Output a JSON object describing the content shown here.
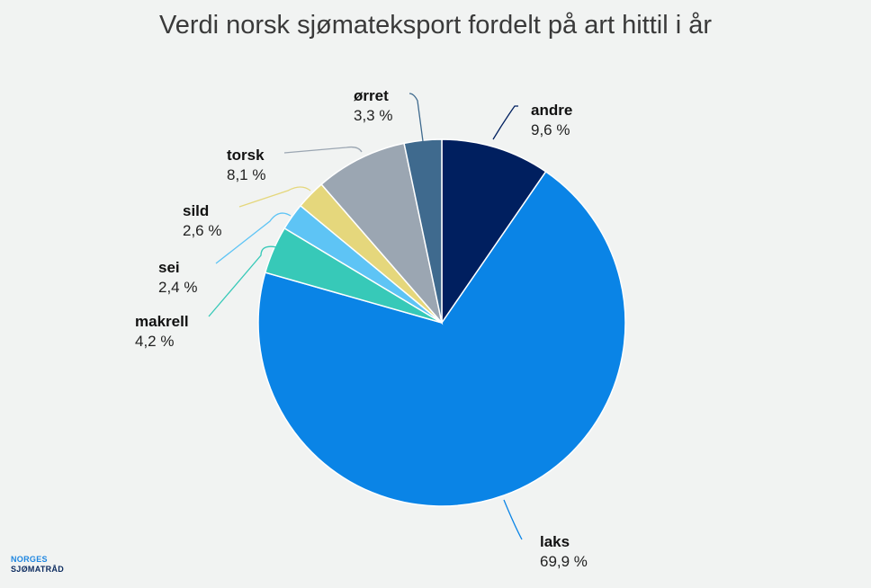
{
  "chart_data": {
    "type": "pie",
    "title": "Verdi norsk sjømateksport fordelt på art hittil i år",
    "start_angle_deg": 0,
    "direction": "clockwise",
    "slices": [
      {
        "label": "andre",
        "value": 9.6,
        "value_label": "9,6 %",
        "color": "#001f5f"
      },
      {
        "label": "laks",
        "value": 69.9,
        "value_label": "69,9 %",
        "color": "#0a84e6"
      },
      {
        "label": "makrell",
        "value": 4.2,
        "value_label": "4,2 %",
        "color": "#37c9b8"
      },
      {
        "label": "sei",
        "value": 2.4,
        "value_label": "2,4 %",
        "color": "#5ec4f5"
      },
      {
        "label": "sild",
        "value": 2.6,
        "value_label": "2,6 %",
        "color": "#e5d77c"
      },
      {
        "label": "torsk",
        "value": 8.1,
        "value_label": "8,1 %",
        "color": "#9ba6b2"
      },
      {
        "label": "ørret",
        "value": 3.3,
        "value_label": "3,3 %",
        "color": "#3f6a8e"
      }
    ]
  },
  "logo": {
    "line1": "NORGES",
    "line2": "SJØMATRÅD"
  }
}
